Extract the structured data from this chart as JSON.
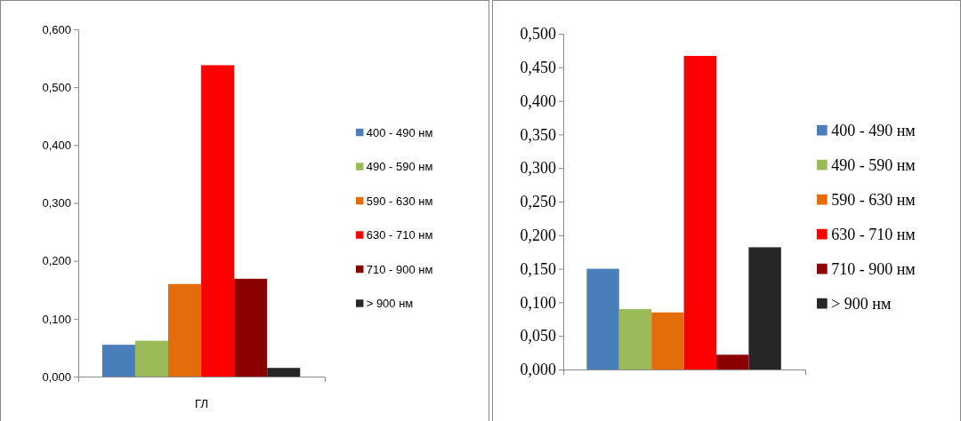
{
  "chart_data": [
    {
      "type": "bar",
      "categories": [
        "ГЛ"
      ],
      "legend": "right",
      "grid": false,
      "ylim": [
        0,
        0.6
      ],
      "yticks": [
        {
          "value": 0,
          "label": "0,000"
        },
        {
          "value": 0.1,
          "label": "0,100"
        },
        {
          "value": 0.2,
          "label": "0,200"
        },
        {
          "value": 0.3,
          "label": "0,300"
        },
        {
          "value": 0.4,
          "label": "0,400"
        },
        {
          "value": 0.5,
          "label": "0,500"
        },
        {
          "value": 0.6,
          "label": "0,600"
        }
      ],
      "series": [
        {
          "name": "400 - 490 нм",
          "color": "#4a7ebb",
          "values": [
            0.055
          ]
        },
        {
          "name": "490 - 590 нм",
          "color": "#9bbb59",
          "values": [
            0.062
          ]
        },
        {
          "name": "590 - 630 нм",
          "color": "#e46c0a",
          "values": [
            0.16
          ]
        },
        {
          "name": "630 - 710 нм",
          "color": "#ff0000",
          "values": [
            0.538
          ]
        },
        {
          "name": "710 - 900 нм",
          "color": "#8b0000",
          "values": [
            0.169
          ]
        },
        {
          "name": "> 900 нм",
          "color": "#262626",
          "values": [
            0.015
          ]
        }
      ]
    },
    {
      "type": "bar",
      "categories": [
        null
      ],
      "legend": "right",
      "grid": false,
      "ylim": [
        0,
        0.5
      ],
      "yticks": [
        {
          "value": 0,
          "label": "0,000"
        },
        {
          "value": 0.05,
          "label": "0,050"
        },
        {
          "value": 0.1,
          "label": "0,100"
        },
        {
          "value": 0.15,
          "label": "0,150"
        },
        {
          "value": 0.2,
          "label": "0,200"
        },
        {
          "value": 0.25,
          "label": "0,250"
        },
        {
          "value": 0.3,
          "label": "0,300"
        },
        {
          "value": 0.35,
          "label": "0,350"
        },
        {
          "value": 0.4,
          "label": "0,400"
        },
        {
          "value": 0.45,
          "label": "0,450"
        },
        {
          "value": 0.5,
          "label": "0,500"
        }
      ],
      "series": [
        {
          "name": "400 - 490 нм",
          "color": "#4a7ebb",
          "values": [
            0.15
          ]
        },
        {
          "name": "490 - 590 нм",
          "color": "#9bbb59",
          "values": [
            0.09
          ]
        },
        {
          "name": "590 - 630 нм",
          "color": "#e46c0a",
          "values": [
            0.085
          ]
        },
        {
          "name": "630 - 710 нм",
          "color": "#ff0000",
          "values": [
            0.467
          ]
        },
        {
          "name": "710 - 900 нм",
          "color": "#8b0000",
          "values": [
            0.022
          ]
        },
        {
          "name": "> 900 нм",
          "color": "#262626",
          "values": [
            0.182
          ]
        }
      ]
    }
  ]
}
